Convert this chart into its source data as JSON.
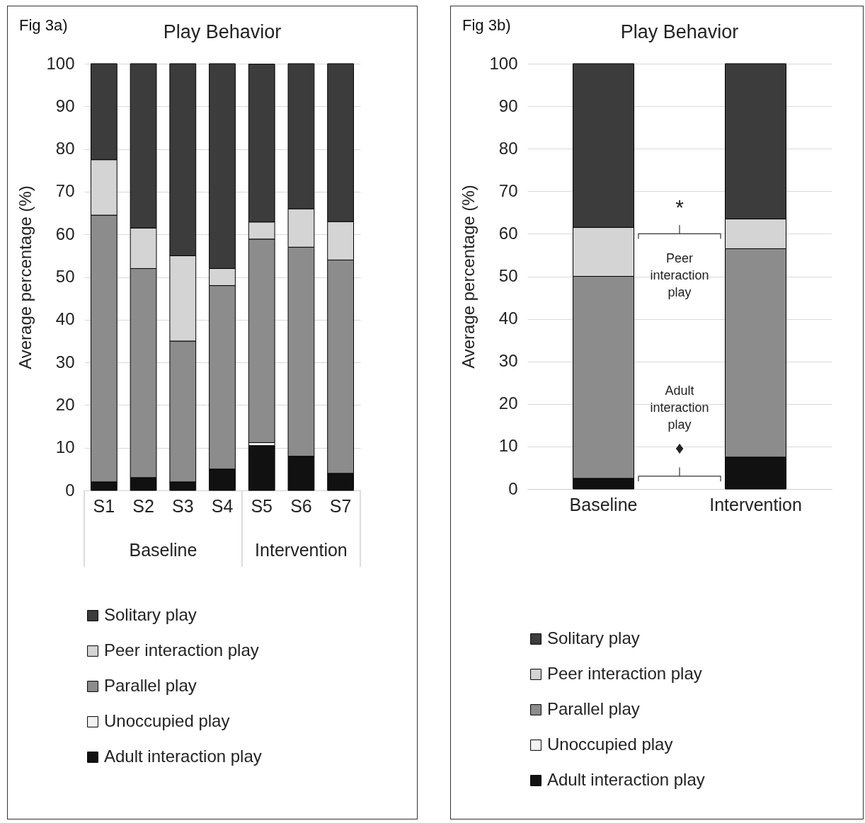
{
  "chart_data": [
    {
      "type": "bar",
      "title": "Play Behavior",
      "ylabel": "Average percentage (%)",
      "categories": [
        "S1",
        "S2",
        "S3",
        "S4",
        "S5",
        "S6",
        "S7"
      ],
      "stacked": true,
      "ylim": [
        0,
        100
      ],
      "yticks": [
        0,
        10,
        20,
        30,
        40,
        50,
        60,
        70,
        80,
        90,
        100
      ],
      "grid": "y",
      "legend": "bottom",
      "annotations": [
        "Fig 3a)",
        "Baseline",
        "Intervention"
      ],
      "series": [
        {
          "name": "Adult interaction play",
          "color": "#111111",
          "values": [
            2,
            3,
            2,
            5,
            10.5,
            8,
            4
          ]
        },
        {
          "name": "Unoccupied play",
          "color": "#f2f2f2",
          "values": [
            0,
            0,
            0,
            0,
            0.7,
            0,
            0
          ]
        },
        {
          "name": "Parallel play",
          "color": "#8c8c8c",
          "values": [
            62.5,
            49,
            33,
            43,
            47.7,
            49,
            50
          ]
        },
        {
          "name": "Peer interaction play",
          "color": "#d4d4d4",
          "values": [
            13,
            9.5,
            20,
            4,
            4,
            9,
            9
          ]
        },
        {
          "name": "Solitary play",
          "color": "#3c3c3c",
          "values": [
            22.5,
            38.5,
            45,
            48,
            37,
            34,
            37
          ]
        }
      ]
    },
    {
      "type": "bar",
      "title": "Play Behavior",
      "ylabel": "Average percentage (%)",
      "categories": [
        "Baseline",
        "Intervention"
      ],
      "stacked": true,
      "ylim": [
        0,
        100
      ],
      "yticks": [
        0,
        10,
        20,
        30,
        40,
        50,
        60,
        70,
        80,
        90,
        100
      ],
      "grid": "y",
      "legend": "bottom",
      "annotations": [
        "Fig 3b)",
        "*",
        "Peer interaction play",
        "Adult interaction play",
        "♦"
      ],
      "series": [
        {
          "name": "Adult interaction play",
          "color": "#111111",
          "values": [
            2.5,
            7.5
          ]
        },
        {
          "name": "Unoccupied play",
          "color": "#f2f2f2",
          "values": [
            0,
            0
          ]
        },
        {
          "name": "Parallel play",
          "color": "#8c8c8c",
          "values": [
            47.5,
            49
          ]
        },
        {
          "name": "Peer interaction play",
          "color": "#d4d4d4",
          "values": [
            11.5,
            7
          ]
        },
        {
          "name": "Solitary play",
          "color": "#3c3c3c",
          "values": [
            38.5,
            36.5
          ]
        }
      ]
    }
  ]
}
